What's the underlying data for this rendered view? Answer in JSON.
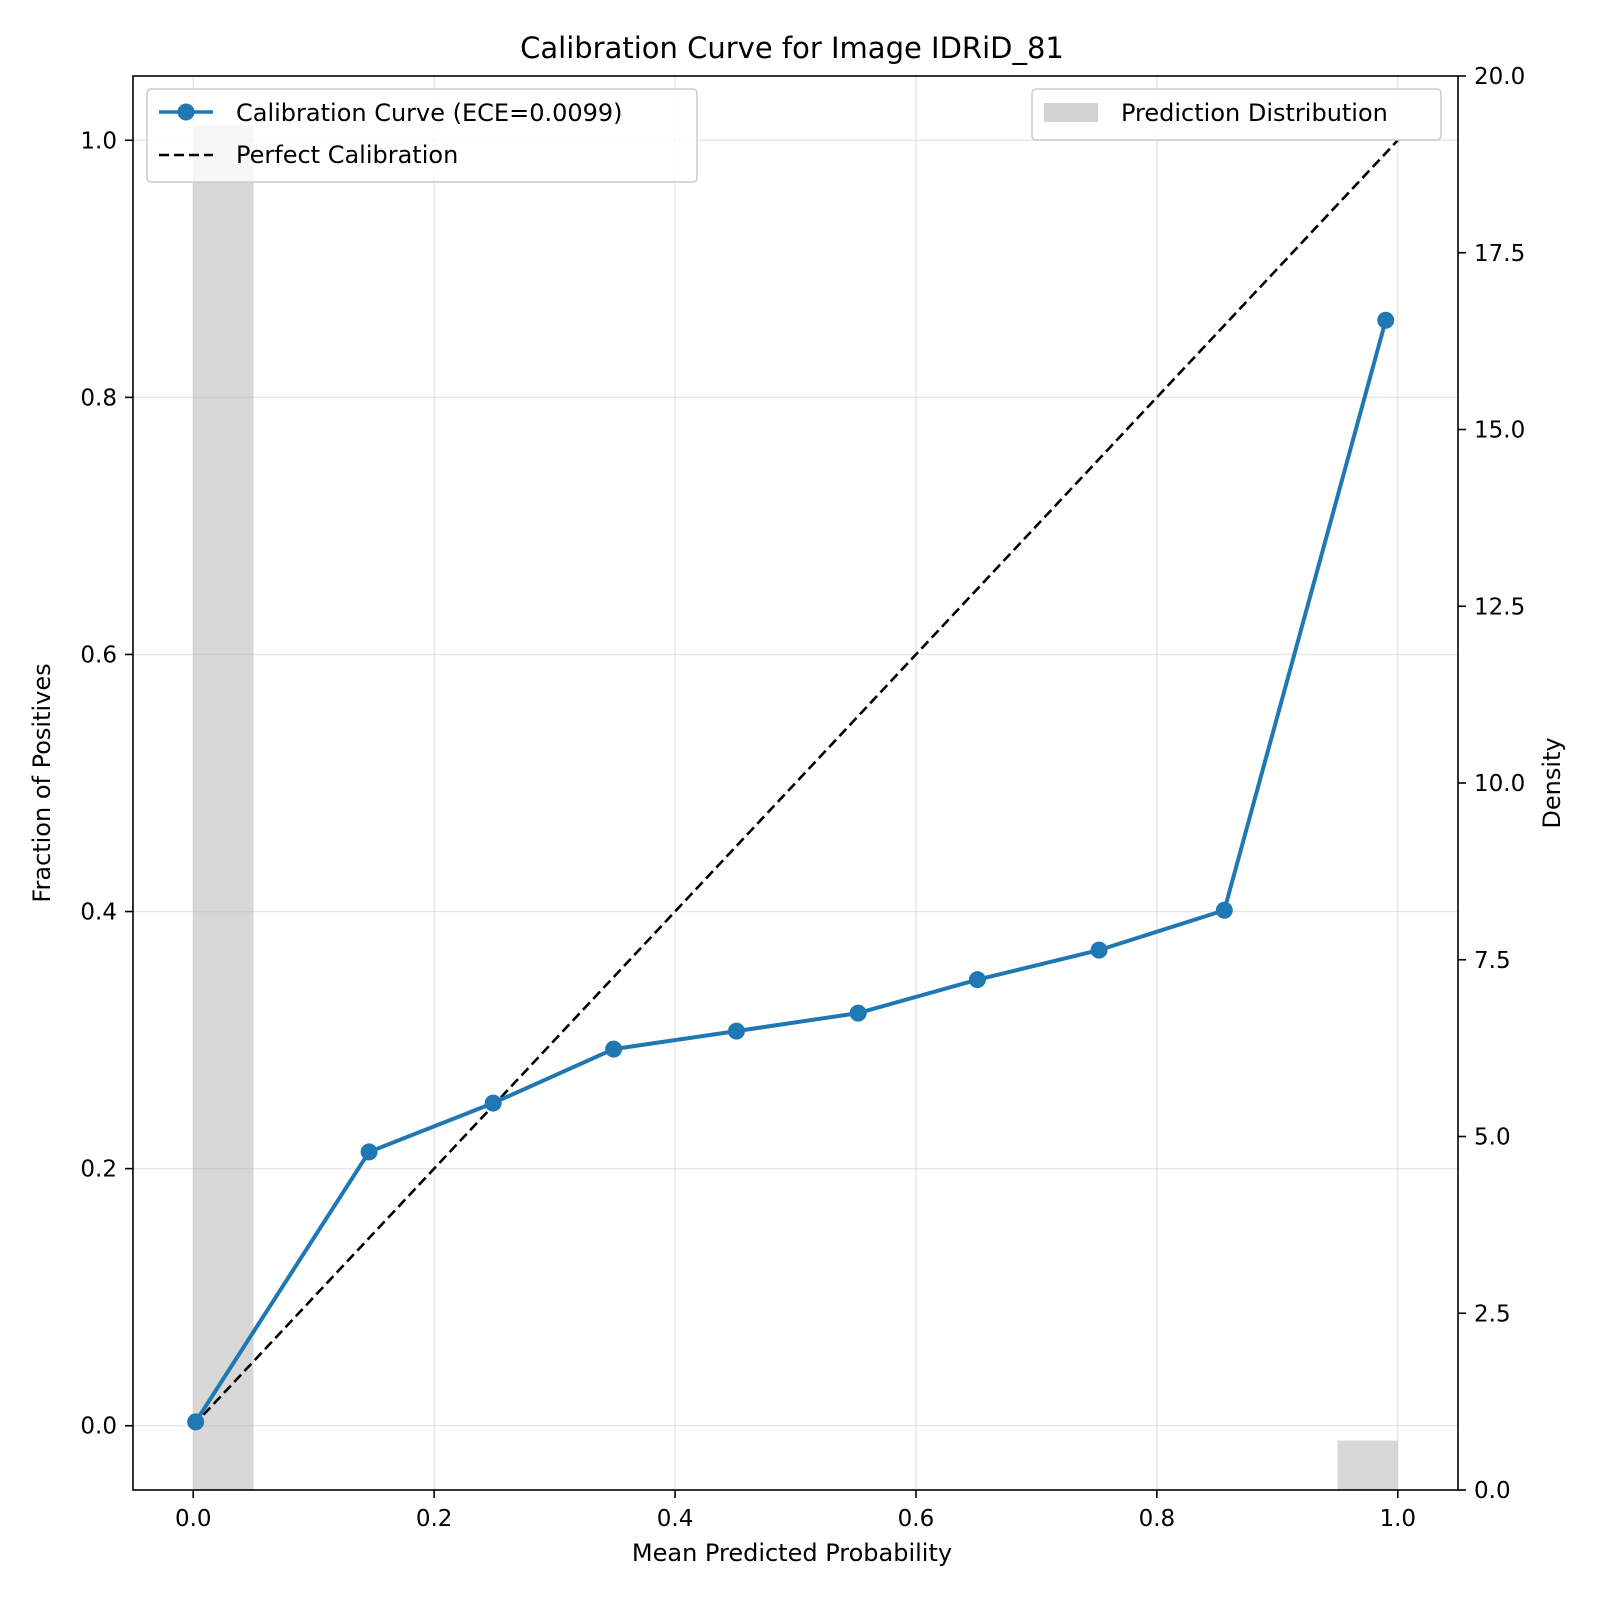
{
  "chart_data": {
    "type": "line",
    "title": "Calibration Curve for Image IDRiD_81",
    "xlabel": "Mean Predicted Probability",
    "ylabel": "Fraction of Positives",
    "y2label": "Density",
    "xlim": [
      -0.05,
      1.05
    ],
    "ylim": [
      -0.05,
      1.05
    ],
    "y2lim": [
      0,
      20
    ],
    "xticks": [
      "0.0",
      "0.2",
      "0.4",
      "0.6",
      "0.8",
      "1.0"
    ],
    "yticks": [
      "0.0",
      "0.2",
      "0.4",
      "0.6",
      "0.8",
      "1.0"
    ],
    "y2ticks": [
      "0.0",
      "2.5",
      "5.0",
      "7.5",
      "10.0",
      "12.5",
      "15.0",
      "17.5",
      "20.0"
    ],
    "grid": true,
    "series": [
      {
        "name": "Calibration Curve (ECE=0.0099)",
        "color": "#1f77b4",
        "style": "solid-markers",
        "x": [
          0.002,
          0.146,
          0.249,
          0.349,
          0.451,
          0.552,
          0.651,
          0.752,
          0.856,
          0.99
        ],
        "y": [
          0.003,
          0.213,
          0.251,
          0.293,
          0.307,
          0.321,
          0.347,
          0.37,
          0.401,
          0.86
        ]
      },
      {
        "name": "Perfect Calibration",
        "color": "#000000",
        "style": "dashed",
        "x": [
          0,
          1
        ],
        "y": [
          0,
          1
        ]
      }
    ],
    "histogram": {
      "name": "Prediction Distribution",
      "color": "#d3d3d3",
      "bins": [
        {
          "x0": 0.0,
          "x1": 0.05,
          "density": 19.3
        },
        {
          "x0": 0.95,
          "x1": 1.0,
          "density": 0.7
        }
      ]
    },
    "legends": {
      "left": "upper-left",
      "right": "upper-right"
    }
  }
}
